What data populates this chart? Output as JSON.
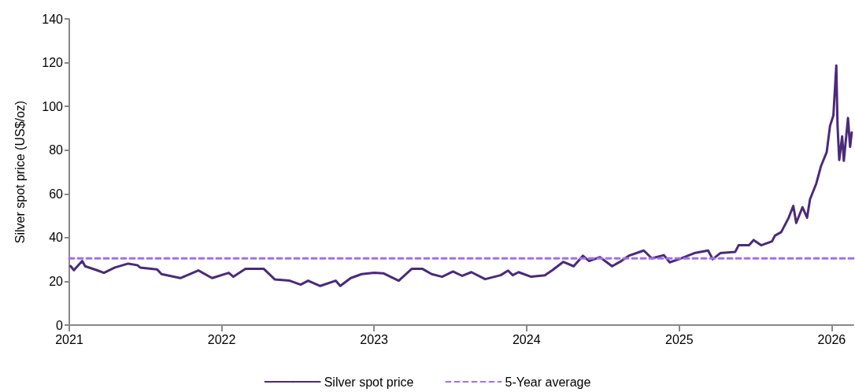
{
  "chart_data": {
    "type": "line",
    "ylabel": "Silver spot price (US$/oz)",
    "xlim": [
      "2021-01-01",
      "2026-02-22"
    ],
    "xticks": [
      "2021",
      "2022",
      "2023",
      "2024",
      "2025",
      "2026"
    ],
    "ylim": [
      0,
      140
    ],
    "yticks": [
      0,
      20,
      40,
      60,
      80,
      100,
      120,
      140
    ],
    "grid": false,
    "legend": "bottom",
    "marker": "none",
    "series": [
      {
        "name": "Silver spot price",
        "color": "#4b2a7b",
        "line_style": "solid",
        "x": [
          "2021-01-04",
          "2021-01-12",
          "2021-02-01",
          "2021-02-08",
          "2021-03-08",
          "2021-03-25",
          "2021-04-20",
          "2021-05-22",
          "2021-06-13",
          "2021-06-20",
          "2021-07-30",
          "2021-08-10",
          "2021-09-24",
          "2021-11-06",
          "2021-12-09",
          "2022-01-18",
          "2022-01-29",
          "2022-02-27",
          "2022-04-12",
          "2022-05-08",
          "2022-06-13",
          "2022-07-09",
          "2022-07-27",
          "2022-08-25",
          "2022-10-01",
          "2022-10-12",
          "2022-11-06",
          "2022-12-02",
          "2023-01-01",
          "2023-01-23",
          "2023-03-01",
          "2023-04-01",
          "2023-04-27",
          "2023-05-19",
          "2023-06-13",
          "2023-07-09",
          "2023-07-31",
          "2023-08-22",
          "2023-09-24",
          "2023-10-31",
          "2023-11-18",
          "2023-11-29",
          "2023-12-13",
          "2024-01-12",
          "2024-02-14",
          "2024-03-03",
          "2024-03-29",
          "2024-04-23",
          "2024-05-15",
          "2024-05-30",
          "2024-06-25",
          "2024-07-24",
          "2024-08-15",
          "2024-09-02",
          "2024-10-08",
          "2024-10-27",
          "2024-11-25",
          "2024-12-09",
          "2025-01-01",
          "2025-02-06",
          "2025-03-11",
          "2025-03-22",
          "2025-04-09",
          "2025-05-15",
          "2025-05-23",
          "2025-06-17",
          "2025-06-28",
          "2025-07-16",
          "2025-08-11",
          "2025-08-18",
          "2025-09-02",
          "2025-09-20",
          "2025-10-01",
          "2025-10-08",
          "2025-10-23",
          "2025-11-03",
          "2025-11-10",
          "2025-11-25",
          "2025-12-06",
          "2025-12-20",
          "2025-12-28",
          "2026-01-05",
          "2026-01-12",
          "2026-01-15",
          "2026-01-19",
          "2026-01-26",
          "2026-01-30",
          "2026-02-09",
          "2026-02-14",
          "2026-02-18"
        ],
        "values": [
          27.0,
          25.1,
          29.3,
          26.9,
          25.1,
          23.9,
          26.3,
          28.1,
          27.4,
          26.3,
          25.5,
          23.3,
          21.5,
          25.0,
          21.5,
          23.9,
          22.1,
          25.7,
          25.7,
          20.9,
          20.3,
          18.5,
          20.3,
          17.9,
          20.3,
          17.9,
          21.5,
          23.3,
          23.9,
          23.7,
          20.3,
          25.7,
          25.7,
          23.3,
          22.1,
          24.5,
          22.5,
          24.2,
          21.0,
          22.8,
          24.9,
          22.8,
          24.2,
          22.1,
          22.8,
          25.1,
          28.9,
          26.9,
          31.7,
          29.3,
          31.1,
          26.9,
          29.3,
          31.7,
          34.1,
          30.5,
          32.0,
          28.7,
          30.2,
          32.9,
          34.1,
          30.1,
          32.9,
          33.5,
          36.5,
          36.5,
          38.9,
          36.5,
          38.3,
          40.9,
          42.5,
          49.1,
          54.5,
          46.7,
          53.9,
          49.1,
          57.5,
          64.7,
          72.5,
          79.1,
          91.1,
          95.8,
          118.7,
          91.1,
          75.5,
          86.3,
          75.1,
          94.7,
          81.5,
          88.1
        ]
      },
      {
        "name": "5-Year average",
        "color": "#a070f0",
        "line_style": "dashed",
        "x": [
          "2021-01-01",
          "2026-02-22"
        ],
        "values": [
          30.5,
          30.5
        ]
      }
    ]
  }
}
